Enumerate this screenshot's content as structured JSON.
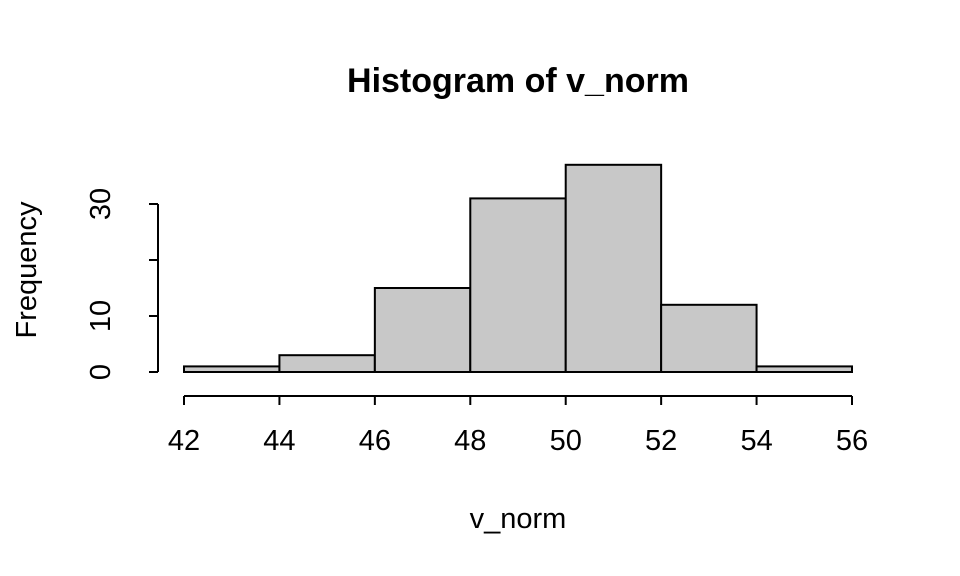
{
  "chart_data": {
    "type": "bar",
    "title": "Histogram of v_norm",
    "xlabel": "v_norm",
    "ylabel": "Frequency",
    "bins": [
      {
        "start": 42,
        "end": 44,
        "count": 1
      },
      {
        "start": 44,
        "end": 46,
        "count": 3
      },
      {
        "start": 46,
        "end": 48,
        "count": 15
      },
      {
        "start": 48,
        "end": 50,
        "count": 31
      },
      {
        "start": 50,
        "end": 52,
        "count": 37
      },
      {
        "start": 52,
        "end": 54,
        "count": 12
      },
      {
        "start": 54,
        "end": 56,
        "count": 1
      }
    ],
    "x_ticks": [
      42,
      44,
      46,
      48,
      50,
      52,
      54,
      56
    ],
    "y_ticks": [
      0,
      10,
      20,
      30
    ],
    "y_tick_labels": [
      "0",
      "10",
      "",
      "30"
    ],
    "xlim": [
      42,
      56
    ],
    "ylim": [
      0,
      37
    ],
    "bar_color": "#c8c8c8",
    "grid": false
  }
}
